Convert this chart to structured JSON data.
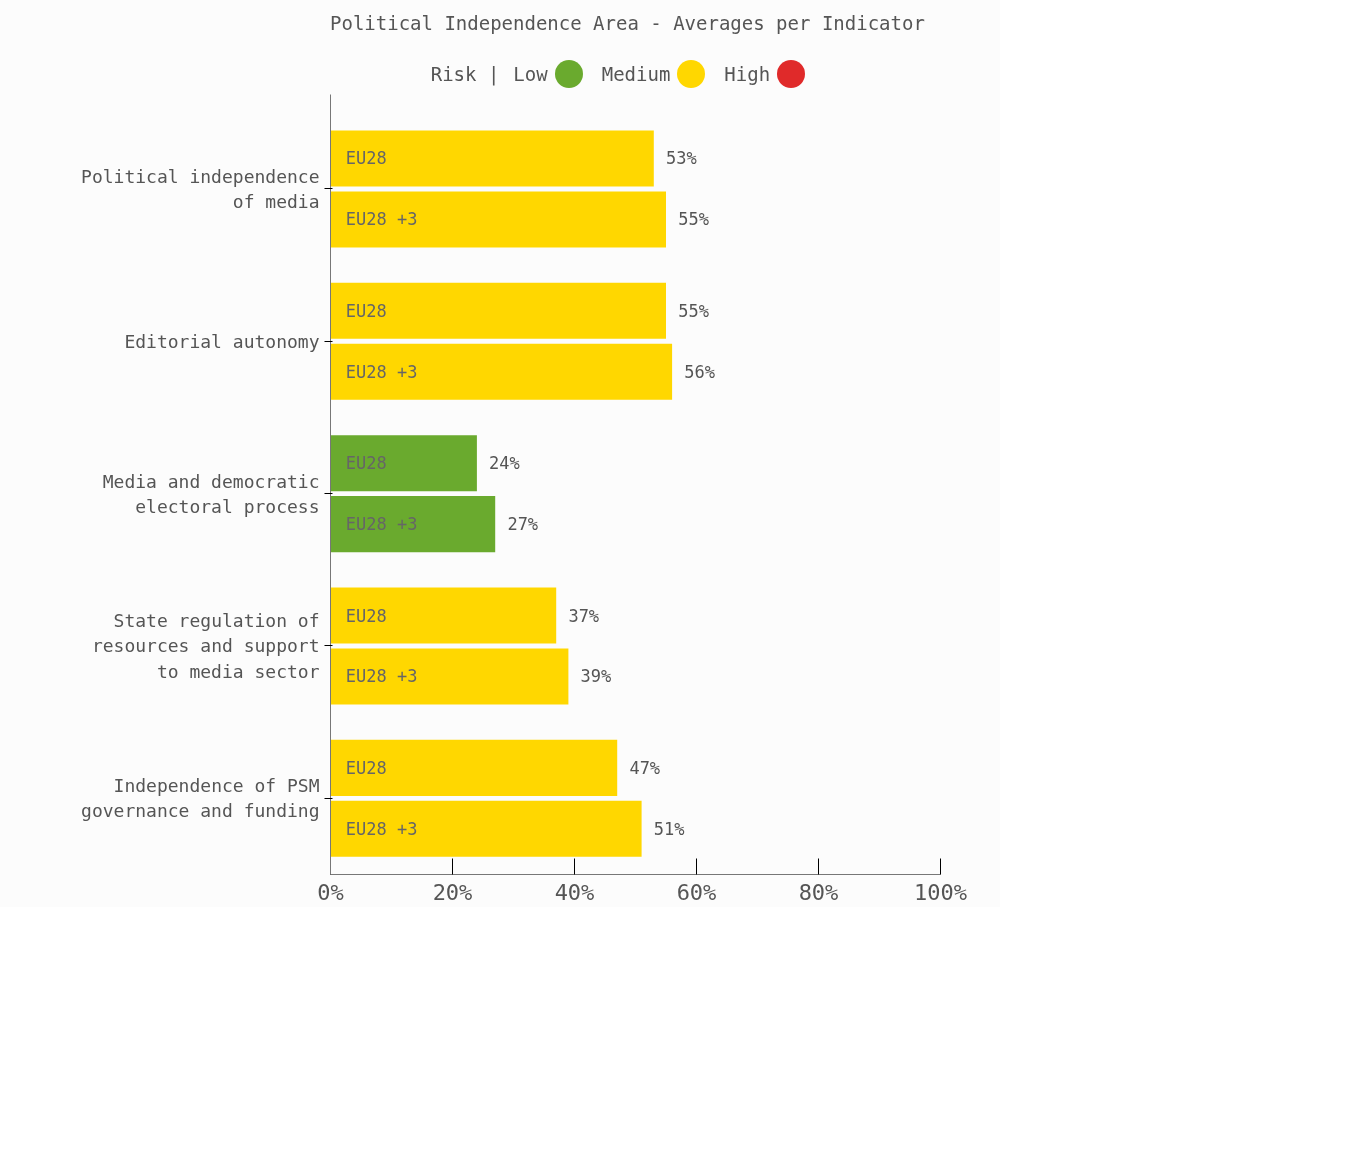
{
  "chart_data": {
    "type": "bar",
    "orientation": "horizontal",
    "title": "Political Independence Area - Averages per Indicator",
    "legend_title": "Risk |",
    "legend": "top",
    "annotations": [
      "Low",
      "Medium",
      "High"
    ],
    "categories": [
      "Political independence of media",
      "Editorial autonomy",
      "Media and democratic electoral process",
      "State regulation of resources and support to media sector",
      "Independence of PSM governance and funding"
    ],
    "series": [
      {
        "name": "EU28",
        "values": [
          53,
          55,
          24,
          37,
          47
        ],
        "colors": [
          "#ffd700",
          "#ffd700",
          "#6aaa2e",
          "#ffd700",
          "#ffd700"
        ],
        "value_labels": [
          "53%",
          "55%",
          "24%",
          "37%",
          "47%"
        ]
      },
      {
        "name": "EU28 +3",
        "values": [
          55,
          56,
          27,
          39,
          51
        ],
        "colors": [
          "#ffd700",
          "#ffd700",
          "#6aaa2e",
          "#ffd700",
          "#ffd700"
        ],
        "value_labels": [
          "55%",
          "56%",
          "27%",
          "39%",
          "51%"
        ]
      }
    ],
    "xlim": [
      0,
      100
    ],
    "xticks": [
      {
        "value": 0,
        "label": "0%"
      },
      {
        "value": 20,
        "label": "20%"
      },
      {
        "value": 40,
        "label": "40%"
      },
      {
        "value": 60,
        "label": "60%"
      },
      {
        "value": 80,
        "label": "80%"
      },
      {
        "value": 100,
        "label": "100%"
      }
    ],
    "grid": false
  }
}
